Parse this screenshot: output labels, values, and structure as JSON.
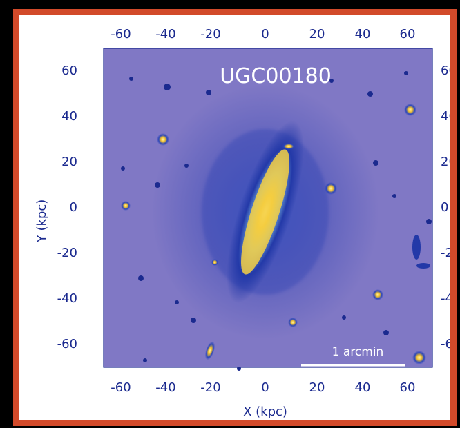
{
  "image": {
    "title": "UGC00180",
    "scale_bar_label": "1 arcmin",
    "x_axis_label": "X (kpc)",
    "y_axis_label": "Y (kpc)",
    "x_ticks": [
      "-60",
      "-40",
      "-20",
      "0",
      "20",
      "40",
      "60"
    ],
    "y_ticks": [
      "60",
      "40",
      "20",
      "0",
      "-20",
      "-40",
      "-60"
    ],
    "colors": {
      "frame_border": "#d24a2a",
      "background_sky": "#8f82c9",
      "deep_blue": "#1b2a8f",
      "galaxy_core": "#f2c12e",
      "galaxy_halo": "#6fa6d8"
    }
  }
}
